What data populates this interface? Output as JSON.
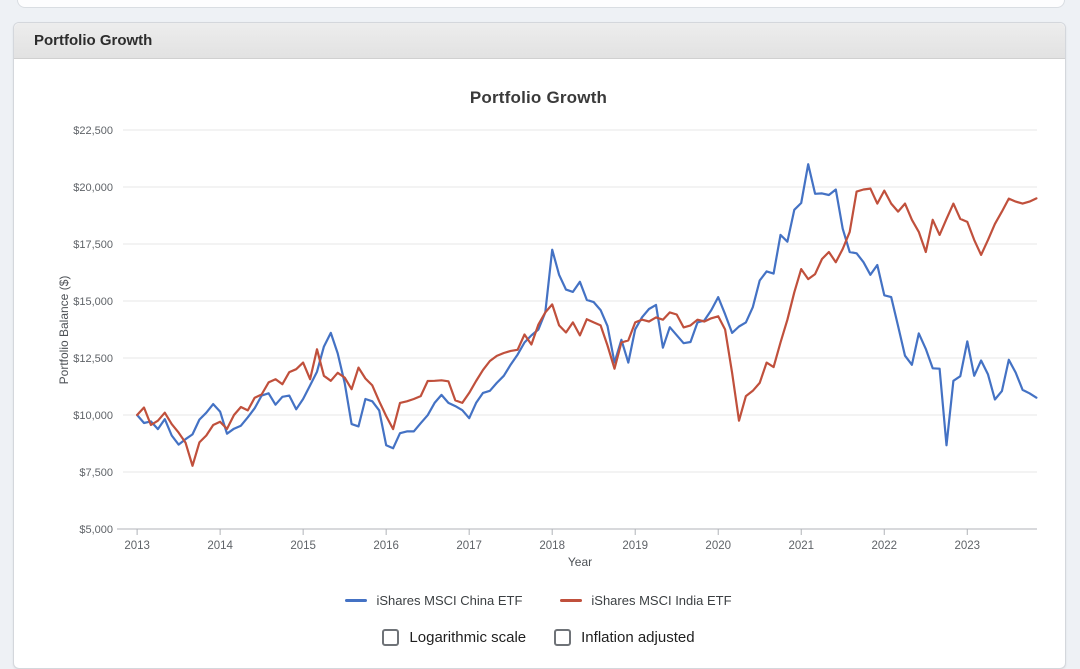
{
  "panel": {
    "header_title": "Portfolio Growth"
  },
  "controls": {
    "log_scale": {
      "label": "Logarithmic scale",
      "checked": false
    },
    "inflation": {
      "label": "Inflation adjusted",
      "checked": false
    }
  },
  "chart_data": {
    "type": "line",
    "title": "Portfolio Growth",
    "xlabel": "Year",
    "ylabel": "Portfolio Balance ($)",
    "grid": "horizontal",
    "legend_position": "bottom",
    "ylim": [
      5000,
      22500
    ],
    "yticks": [
      5000,
      7500,
      10000,
      12500,
      15000,
      17500,
      20000,
      22500
    ],
    "ytick_format": "$#,##0",
    "xticks": [
      2013,
      2014,
      2015,
      2016,
      2017,
      2018,
      2019,
      2020,
      2021,
      2022,
      2023
    ],
    "x_start_year": 2013,
    "x_frequency": "monthly",
    "series": [
      {
        "name": "iShares MSCI China ETF",
        "color": "#4472c4",
        "values": [
          10000,
          9650,
          9720,
          9380,
          9820,
          9100,
          8700,
          8940,
          9150,
          9800,
          10100,
          10480,
          10150,
          9180,
          9400,
          9530,
          9900,
          10300,
          10850,
          10950,
          10450,
          10800,
          10850,
          10250,
          10700,
          11300,
          11900,
          13000,
          13600,
          12700,
          11400,
          9600,
          9500,
          10700,
          10600,
          10200,
          8670,
          8540,
          9200,
          9280,
          9280,
          9640,
          9990,
          10530,
          10880,
          10530,
          10390,
          10210,
          9860,
          10530,
          10970,
          11060,
          11410,
          11720,
          12210,
          12650,
          13180,
          13490,
          13750,
          14500,
          17250,
          16150,
          15500,
          15400,
          15840,
          15050,
          14950,
          14600,
          13900,
          12300,
          13300,
          12300,
          13760,
          14290,
          14650,
          14830,
          12950,
          13850,
          13500,
          13150,
          13200,
          14060,
          14150,
          14600,
          15170,
          14420,
          13600,
          13880,
          14060,
          14730,
          15900,
          16300,
          16200,
          17900,
          17600,
          19000,
          19300,
          21000,
          19700,
          19720,
          19650,
          19890,
          18170,
          17150,
          17090,
          16700,
          16150,
          16580,
          15250,
          15170,
          13900,
          12600,
          12200,
          13580,
          12900,
          12050,
          12030,
          8670,
          11500,
          11700,
          13230,
          11720,
          12390,
          11780,
          10680,
          11050,
          12420,
          11860,
          11100,
          10950,
          10760
        ]
      },
      {
        "name": "iShares MSCI India ETF",
        "color": "#c0503c",
        "values": [
          10000,
          10330,
          9560,
          9750,
          10100,
          9600,
          9230,
          8790,
          7770,
          8800,
          9100,
          9560,
          9700,
          9390,
          10000,
          10350,
          10200,
          10760,
          10900,
          11430,
          11570,
          11350,
          11880,
          12010,
          12300,
          11570,
          12880,
          11720,
          11500,
          11850,
          11640,
          11130,
          12080,
          11600,
          11300,
          10600,
          9950,
          9380,
          10530,
          10600,
          10700,
          10830,
          11490,
          11500,
          11520,
          11480,
          10640,
          10530,
          10970,
          11490,
          11980,
          12370,
          12590,
          12720,
          12810,
          12860,
          13530,
          13090,
          13970,
          14500,
          14850,
          13930,
          13620,
          14060,
          13490,
          14200,
          14060,
          13930,
          13050,
          12030,
          13180,
          13270,
          14060,
          14180,
          14100,
          14280,
          14180,
          14500,
          14410,
          13840,
          13930,
          14180,
          14100,
          14240,
          14330,
          13750,
          11850,
          9750,
          10830,
          11060,
          11410,
          12300,
          12100,
          13180,
          14180,
          15380,
          16400,
          15960,
          16180,
          16840,
          17150,
          16700,
          17280,
          18030,
          19800,
          19890,
          19930,
          19270,
          19840,
          19270,
          18920,
          19270,
          18560,
          18030,
          17150,
          18560,
          17900,
          18600,
          19270,
          18600,
          18470,
          17680,
          17020,
          17680,
          18380,
          18920,
          19490,
          19360,
          19270,
          19360,
          19500
        ]
      }
    ]
  }
}
